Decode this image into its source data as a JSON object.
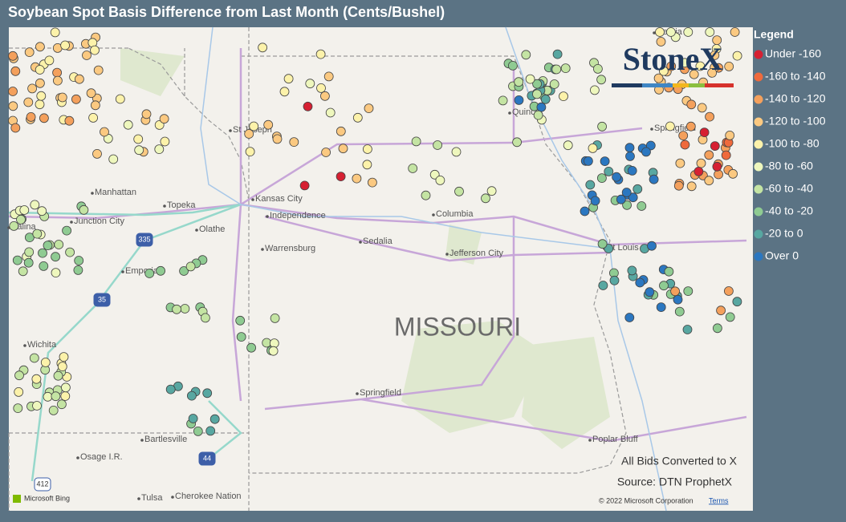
{
  "header": {
    "title": "Soybean Spot Basis Difference from Last Month (Cents/Bushel)"
  },
  "legend": {
    "title": "Legend",
    "items": [
      {
        "label": "Under -160",
        "color": "#d62032"
      },
      {
        "label": "-160 to -140",
        "color": "#ef6a3c"
      },
      {
        "label": "-140 to -120",
        "color": "#f4a05c"
      },
      {
        "label": "-120 to -100",
        "color": "#fbc981"
      },
      {
        "label": "-100 to -80",
        "color": "#fcf2aa"
      },
      {
        "label": "-80 to -60",
        "color": "#eef7bd"
      },
      {
        "label": "-60 to -40",
        "color": "#c4e4a3"
      },
      {
        "label": "-40 to -20",
        "color": "#8fcb92"
      },
      {
        "label": "-20 to 0",
        "color": "#58a7a1"
      },
      {
        "label": "Over 0",
        "color": "#2b77c0"
      }
    ]
  },
  "map": {
    "state": "MISSOURI",
    "cities": [
      "St Joseph",
      "Manhattan",
      "Topeka",
      "Kansas City",
      "Independence",
      "Junction City",
      "Salina",
      "Olathe",
      "Emporia",
      "Warrensburg",
      "Sedalia",
      "Columbia",
      "Jefferson City",
      "St Louis",
      "Springfield",
      "Quincy",
      "Wichita",
      "Springfield",
      "Bartlesville",
      "Osage I.R.",
      "Tulsa",
      "Cherokee Nation",
      "Poplar Bluff",
      "Peoria"
    ],
    "shields": [
      "335",
      "35",
      "44",
      "412"
    ]
  },
  "logo": "StoneX",
  "notes": [
    "All Bids Converted to X",
    "Source: DTN ProphetX"
  ],
  "footer": {
    "bing": "Microsoft Bing",
    "copyright": "© 2022 Microsoft Corporation",
    "terms": "Terms"
  }
}
